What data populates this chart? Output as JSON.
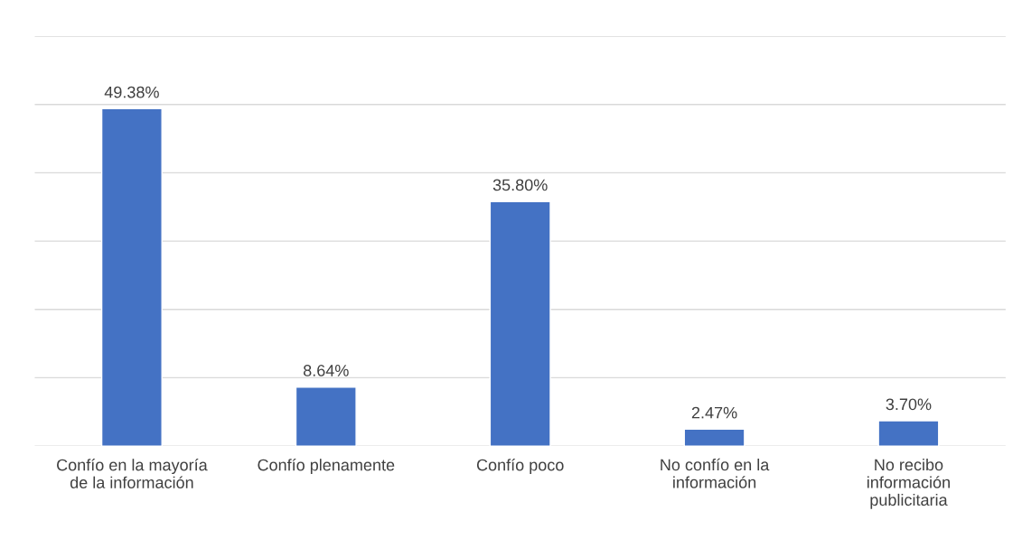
{
  "chart_data": {
    "type": "bar",
    "categories": [
      "Confío en la mayoría\nde la información",
      "Confío plenamente",
      "Confío poco",
      "No confío en la\ninformación",
      "No recibo\ninformación\npublicitaria"
    ],
    "values": [
      49.38,
      8.64,
      35.8,
      2.47,
      3.7
    ],
    "value_labels": [
      "49.38%",
      "8.64%",
      "35.80%",
      "2.47%",
      "3.70%"
    ],
    "color": "#4472c4",
    "ylim": [
      0,
      60
    ],
    "yticks": [
      {
        "value": 0,
        "label": null
      },
      {
        "value": 10,
        "label": null
      },
      {
        "value": 20,
        "label": null
      },
      {
        "value": 30,
        "label": null
      },
      {
        "value": 40,
        "label": null
      },
      {
        "value": 50,
        "label": null
      },
      {
        "value": 60,
        "label": null
      }
    ],
    "tick_labels": "x",
    "grid": "y",
    "legend": false
  }
}
